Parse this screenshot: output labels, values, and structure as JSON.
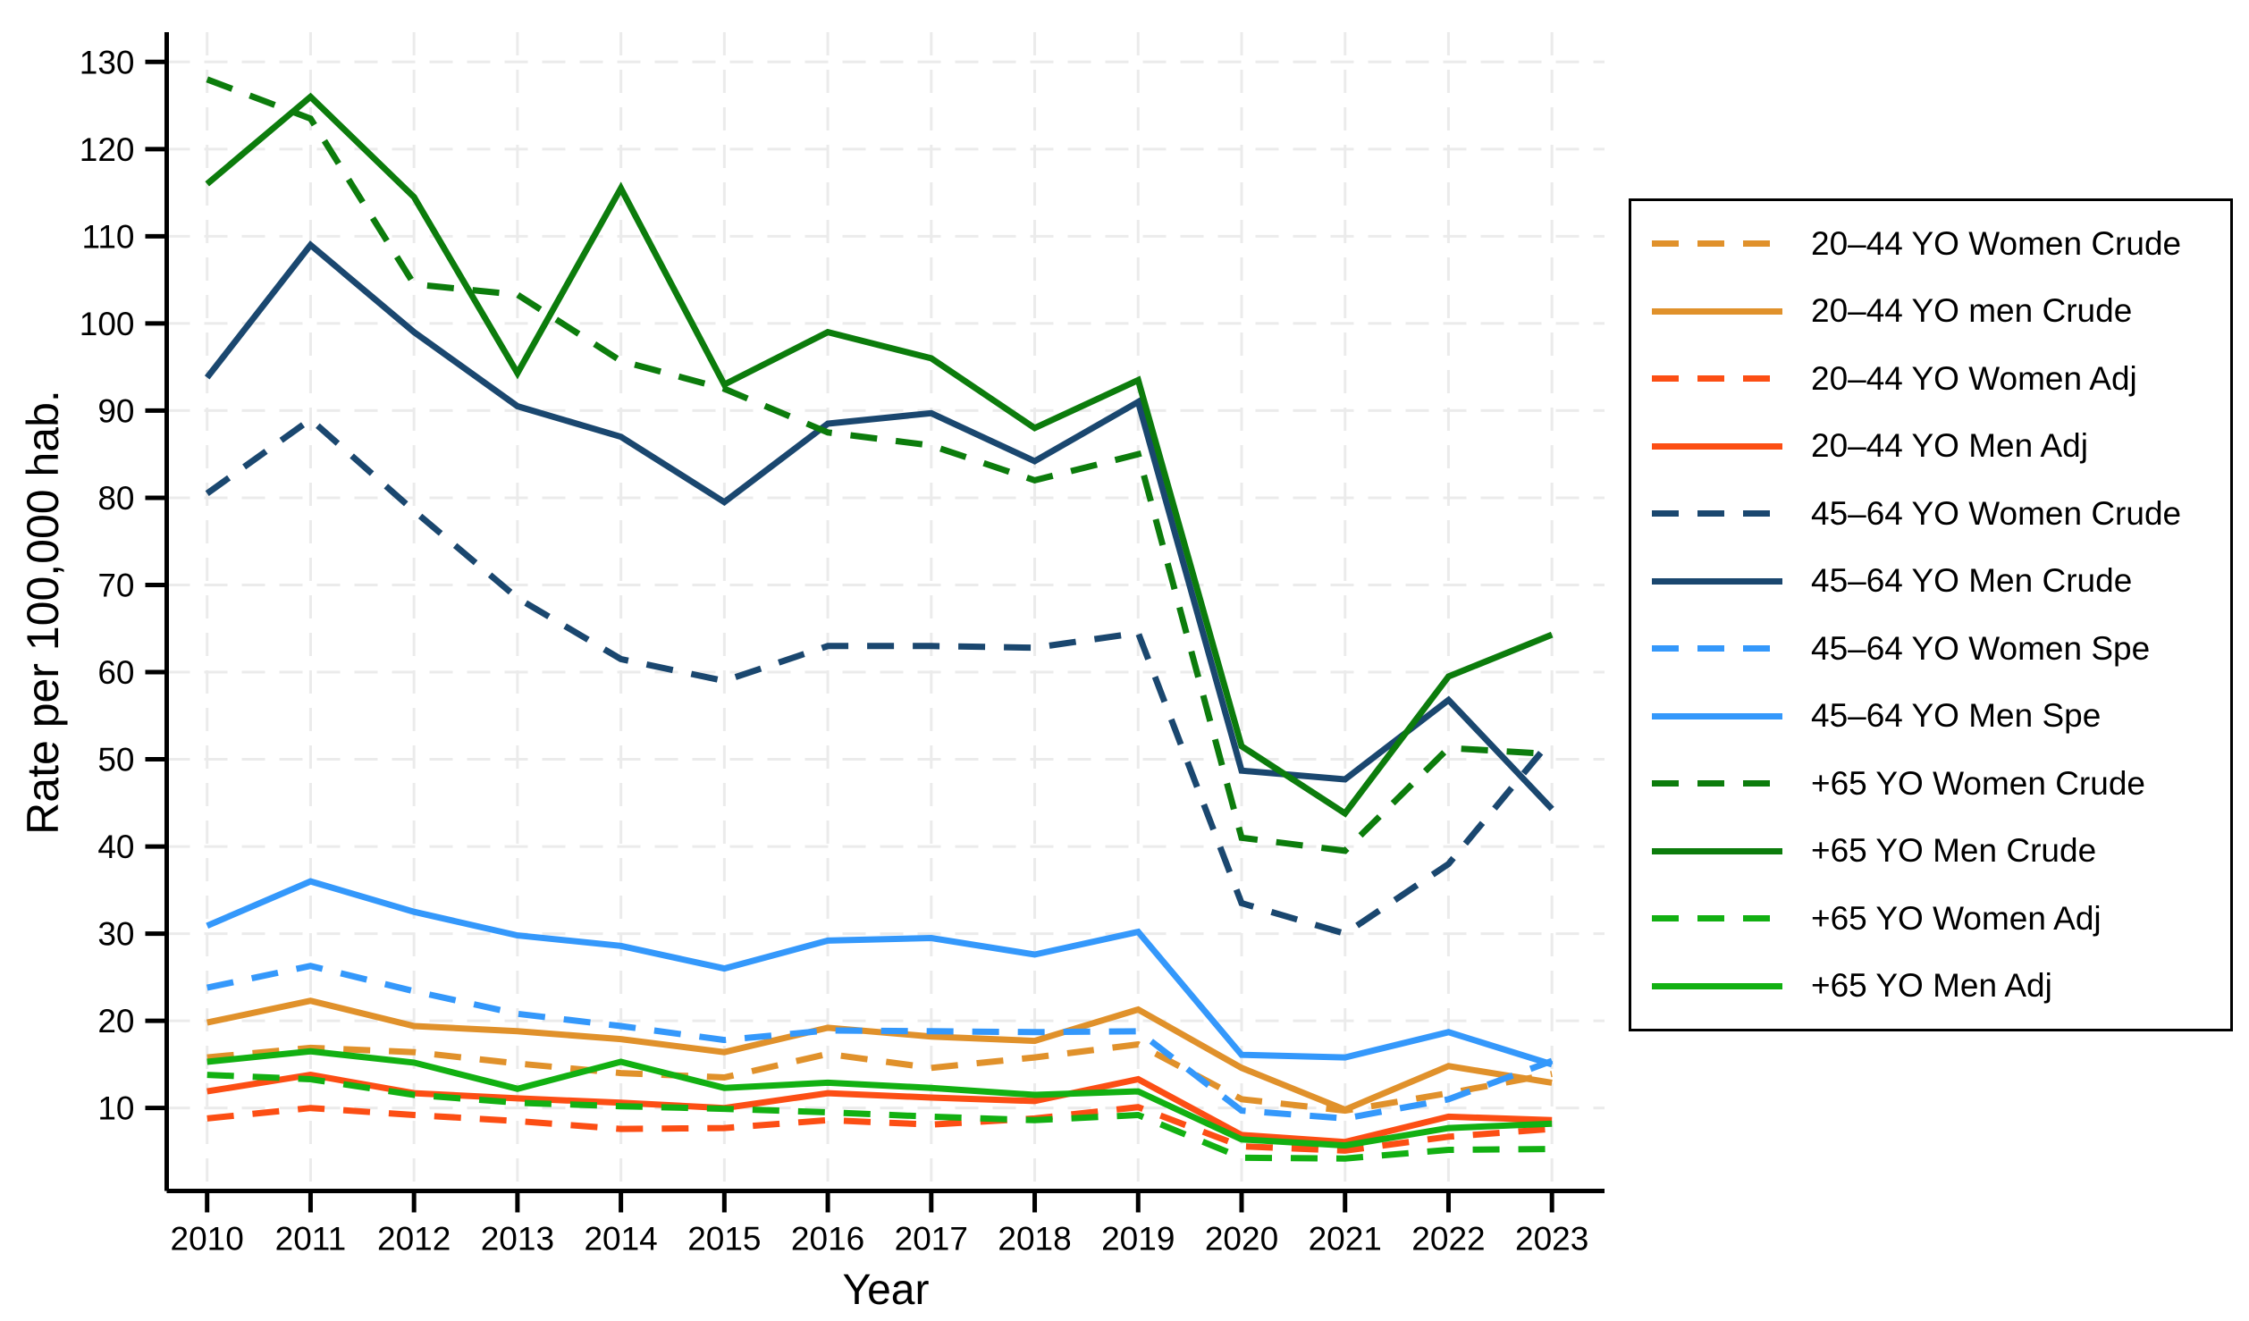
{
  "chart_data": {
    "type": "line",
    "title": "",
    "xlabel": "Year",
    "ylabel": "Rate per 100,000 hab.",
    "x": [
      2010,
      2011,
      2012,
      2013,
      2014,
      2015,
      2016,
      2017,
      2018,
      2019,
      2020,
      2021,
      2022,
      2023
    ],
    "yticks": [
      10,
      20,
      30,
      40,
      50,
      60,
      70,
      80,
      90,
      100,
      110,
      120,
      130
    ],
    "ylim": [
      0,
      133
    ],
    "grid": true,
    "legend_position": "right",
    "background": "#ffffff",
    "grid_color": "#ebebeb",
    "axis_color": "#000000",
    "series": [
      {
        "name": "20–44 YO Women Crude",
        "color": "#E0912B",
        "dash": true,
        "values": [
          15.8,
          16.9,
          16.4,
          15.1,
          14.0,
          13.5,
          16.2,
          14.6,
          15.8,
          17.3,
          11.0,
          9.7,
          11.7,
          13.9
        ]
      },
      {
        "name": "20–44 YO men Crude",
        "color": "#E0912B",
        "dash": false,
        "values": [
          19.8,
          22.3,
          19.4,
          18.8,
          17.9,
          16.4,
          19.2,
          18.2,
          17.7,
          21.3,
          14.6,
          9.8,
          14.8,
          12.9
        ]
      },
      {
        "name": "20–44 YO Women Adj",
        "color": "#FC4E14",
        "dash": true,
        "values": [
          8.8,
          10.0,
          9.2,
          8.5,
          7.6,
          7.7,
          8.6,
          8.1,
          8.8,
          10.1,
          5.6,
          5.1,
          6.7,
          7.6
        ]
      },
      {
        "name": "20–44 YO Men Adj",
        "color": "#FC4E14",
        "dash": false,
        "values": [
          11.9,
          13.8,
          11.7,
          11.1,
          10.6,
          10.0,
          11.7,
          11.2,
          10.8,
          13.3,
          6.9,
          6.1,
          9.0,
          8.6
        ]
      },
      {
        "name": "45–64 YO Women Crude",
        "color": "#1A476F",
        "dash": true,
        "values": [
          80.5,
          89.0,
          78.5,
          68.5,
          61.5,
          59.0,
          63.0,
          63.0,
          62.8,
          64.5,
          33.5,
          30.0,
          38.0,
          52.3
        ]
      },
      {
        "name": "45–64 YO Men Crude",
        "color": "#1A476F",
        "dash": false,
        "values": [
          93.8,
          109.0,
          99.0,
          90.5,
          87.0,
          79.5,
          88.5,
          89.7,
          84.2,
          91.0,
          48.7,
          47.7,
          56.8,
          44.3
        ]
      },
      {
        "name": "45–64 YO Women Spe",
        "color": "#3498FB",
        "dash": true,
        "values": [
          23.8,
          26.3,
          23.4,
          20.8,
          19.4,
          17.8,
          18.9,
          18.8,
          18.7,
          18.8,
          9.7,
          8.8,
          11.0,
          15.4
        ]
      },
      {
        "name": "45–64 YO Men Spe",
        "color": "#3498FB",
        "dash": false,
        "values": [
          30.9,
          36.0,
          32.5,
          29.8,
          28.6,
          26.0,
          29.2,
          29.5,
          27.6,
          30.2,
          16.1,
          15.8,
          18.7,
          15.0
        ]
      },
      {
        "name": "+65 YO Women Crude",
        "color": "#0C7C0C",
        "dash": true,
        "values": [
          128.0,
          123.5,
          104.5,
          103.3,
          95.7,
          92.5,
          87.5,
          86.0,
          82.0,
          85.0,
          41.0,
          39.5,
          51.3,
          50.6
        ]
      },
      {
        "name": "+65 YO Men Crude",
        "color": "#0C7C0C",
        "dash": false,
        "values": [
          116.0,
          126.0,
          114.5,
          94.3,
          115.5,
          93.0,
          99.0,
          96.0,
          88.0,
          93.5,
          51.5,
          43.8,
          59.5,
          64.3
        ]
      },
      {
        "name": "+65 YO Women Adj",
        "color": "#12B012",
        "dash": true,
        "values": [
          13.8,
          13.3,
          11.5,
          10.6,
          10.2,
          9.9,
          9.5,
          9.0,
          8.6,
          9.2,
          4.3,
          4.2,
          5.2,
          5.3
        ]
      },
      {
        "name": "+65 YO Men Adj",
        "color": "#12B012",
        "dash": false,
        "values": [
          15.3,
          16.5,
          15.2,
          12.2,
          15.3,
          12.3,
          12.9,
          12.3,
          11.5,
          11.9,
          6.4,
          5.7,
          7.7,
          8.2
        ]
      }
    ]
  }
}
